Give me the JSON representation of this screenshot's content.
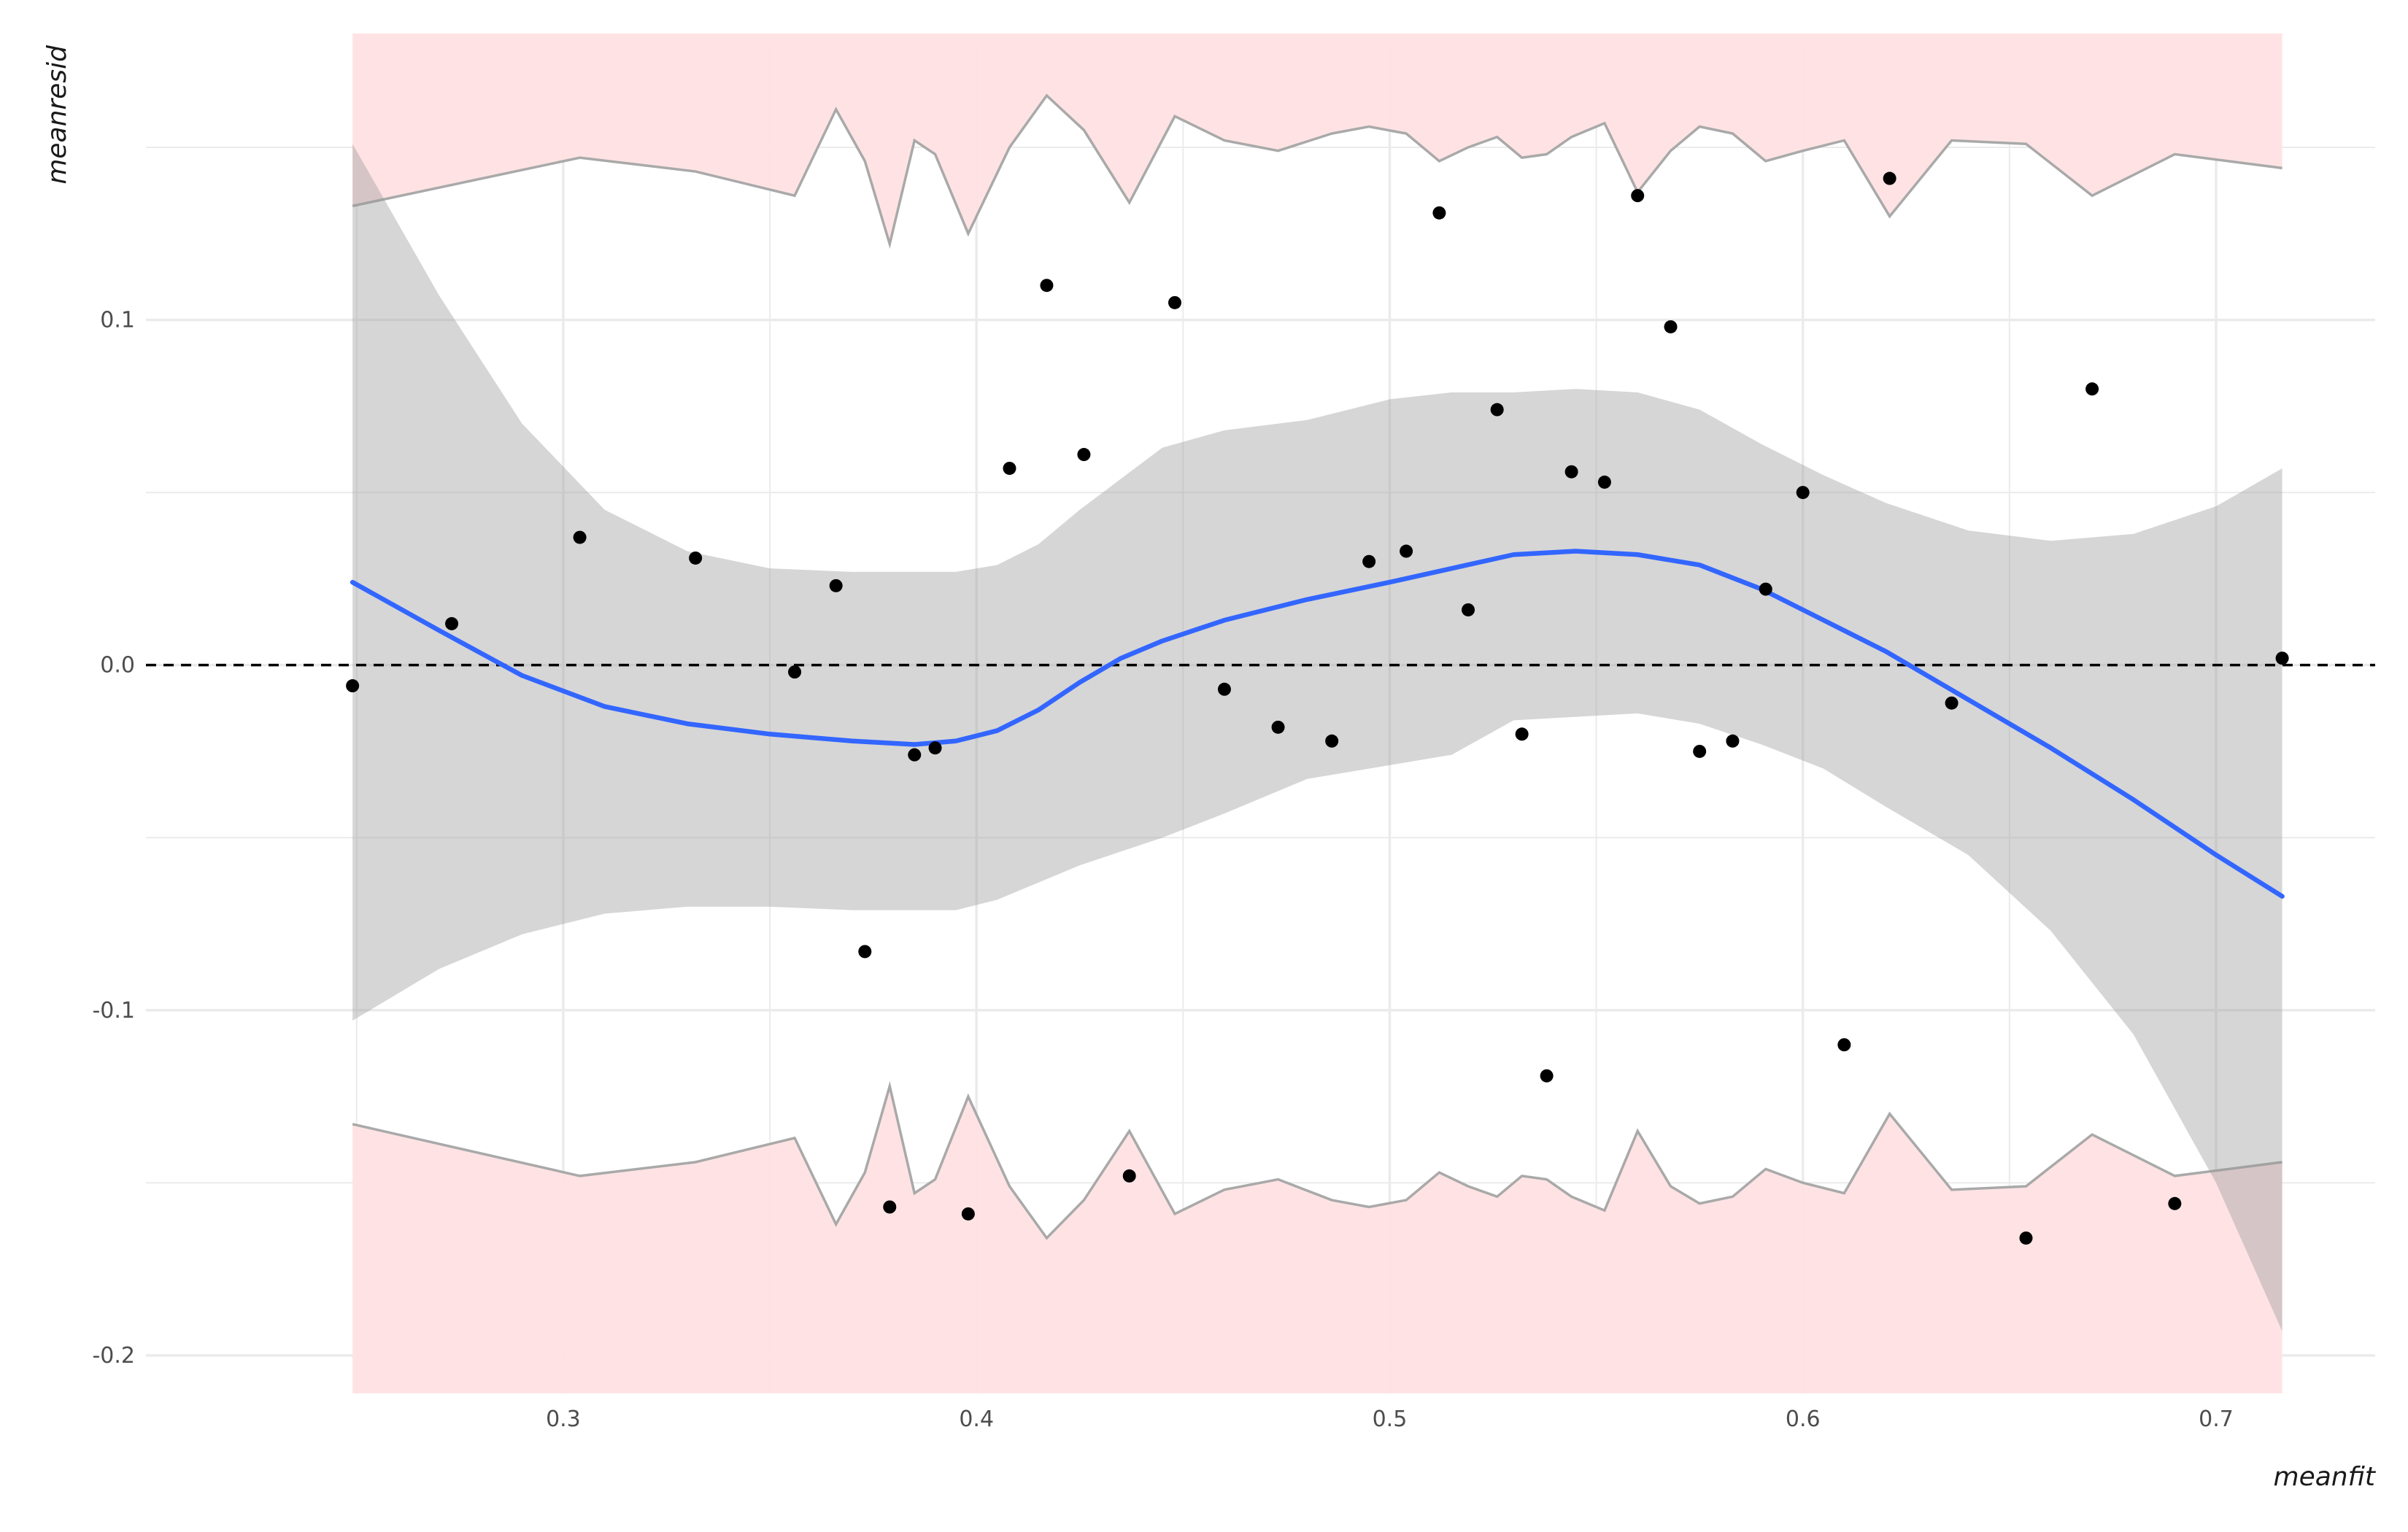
{
  "chart_data": {
    "type": "scatter",
    "title": "",
    "xlabel": "meanfit",
    "ylabel": "meanresid",
    "xlim": [
      0.199,
      0.7385
    ],
    "ylim": [
      -0.211,
      0.18
    ],
    "x_ticks": [
      {
        "value": 0.3,
        "label": "0.3"
      },
      {
        "value": 0.4,
        "label": "0.4"
      },
      {
        "value": 0.5,
        "label": "0.5"
      },
      {
        "value": 0.6,
        "label": "0.6"
      },
      {
        "value": 0.7,
        "label": "0.7"
      }
    ],
    "y_ticks": [
      {
        "value": -0.2,
        "label": "-0.2"
      },
      {
        "value": -0.1,
        "label": "-0.1"
      },
      {
        "value": 0.0,
        "label": "0.0"
      },
      {
        "value": 0.1,
        "label": "0.1"
      }
    ],
    "grid": true,
    "reference_line": {
      "y": 0.0,
      "style": "dashed"
    },
    "colors": {
      "points": "#000000",
      "smooth_line": "#3366ff",
      "confidence_band": "#999999",
      "envelope_fill": "#ffe1e3",
      "envelope_line": "#a9a9a9",
      "grid": "#ebebeb"
    },
    "points": [
      {
        "x": 0.249,
        "y": -0.006
      },
      {
        "x": 0.273,
        "y": 0.012
      },
      {
        "x": 0.304,
        "y": 0.037
      },
      {
        "x": 0.332,
        "y": 0.031
      },
      {
        "x": 0.356,
        "y": -0.002
      },
      {
        "x": 0.366,
        "y": 0.023
      },
      {
        "x": 0.373,
        "y": -0.083
      },
      {
        "x": 0.379,
        "y": -0.157
      },
      {
        "x": 0.385,
        "y": -0.026
      },
      {
        "x": 0.39,
        "y": -0.024
      },
      {
        "x": 0.398,
        "y": -0.159
      },
      {
        "x": 0.408,
        "y": 0.057
      },
      {
        "x": 0.417,
        "y": 0.11
      },
      {
        "x": 0.426,
        "y": 0.061
      },
      {
        "x": 0.437,
        "y": -0.148
      },
      {
        "x": 0.448,
        "y": 0.105
      },
      {
        "x": 0.46,
        "y": -0.007
      },
      {
        "x": 0.473,
        "y": -0.018
      },
      {
        "x": 0.486,
        "y": -0.022
      },
      {
        "x": 0.495,
        "y": 0.03
      },
      {
        "x": 0.504,
        "y": 0.033
      },
      {
        "x": 0.512,
        "y": 0.131
      },
      {
        "x": 0.519,
        "y": 0.016
      },
      {
        "x": 0.526,
        "y": 0.074
      },
      {
        "x": 0.532,
        "y": -0.02
      },
      {
        "x": 0.538,
        "y": -0.119
      },
      {
        "x": 0.544,
        "y": 0.056
      },
      {
        "x": 0.552,
        "y": 0.053
      },
      {
        "x": 0.56,
        "y": 0.136
      },
      {
        "x": 0.568,
        "y": 0.098
      },
      {
        "x": 0.575,
        "y": -0.025
      },
      {
        "x": 0.583,
        "y": -0.022
      },
      {
        "x": 0.591,
        "y": 0.022
      },
      {
        "x": 0.6,
        "y": 0.05
      },
      {
        "x": 0.61,
        "y": -0.11
      },
      {
        "x": 0.621,
        "y": 0.141
      },
      {
        "x": 0.636,
        "y": -0.011
      },
      {
        "x": 0.654,
        "y": -0.166
      },
      {
        "x": 0.67,
        "y": 0.08
      },
      {
        "x": 0.69,
        "y": -0.156
      },
      {
        "x": 0.716,
        "y": 0.002
      }
    ],
    "smooth": {
      "x": [
        0.249,
        0.27,
        0.29,
        0.31,
        0.33,
        0.35,
        0.37,
        0.385,
        0.395,
        0.405,
        0.415,
        0.425,
        0.435,
        0.445,
        0.46,
        0.48,
        0.5,
        0.515,
        0.53,
        0.545,
        0.56,
        0.575,
        0.59,
        0.605,
        0.62,
        0.64,
        0.66,
        0.68,
        0.7,
        0.716
      ],
      "y": [
        0.024,
        0.01,
        -0.003,
        -0.012,
        -0.017,
        -0.02,
        -0.022,
        -0.023,
        -0.022,
        -0.019,
        -0.013,
        -0.005,
        0.002,
        0.007,
        0.013,
        0.019,
        0.024,
        0.028,
        0.032,
        0.033,
        0.032,
        0.029,
        0.022,
        0.013,
        0.004,
        -0.01,
        -0.024,
        -0.039,
        -0.055,
        -0.067
      ],
      "lower": [
        -0.103,
        -0.088,
        -0.078,
        -0.072,
        -0.07,
        -0.07,
        -0.071,
        -0.071,
        -0.071,
        -0.068,
        -0.063,
        -0.058,
        -0.054,
        -0.05,
        -0.043,
        -0.033,
        -0.029,
        -0.026,
        -0.016,
        -0.015,
        -0.014,
        -0.017,
        -0.023,
        -0.03,
        -0.041,
        -0.055,
        -0.077,
        -0.107,
        -0.15,
        -0.193
      ],
      "upper": [
        0.151,
        0.107,
        0.07,
        0.045,
        0.033,
        0.028,
        0.027,
        0.027,
        0.027,
        0.029,
        0.035,
        0.045,
        0.054,
        0.063,
        0.068,
        0.071,
        0.077,
        0.079,
        0.079,
        0.08,
        0.079,
        0.074,
        0.064,
        0.055,
        0.047,
        0.039,
        0.036,
        0.038,
        0.046,
        0.057
      ]
    },
    "envelope": {
      "x": [
        0.249,
        0.304,
        0.332,
        0.356,
        0.366,
        0.373,
        0.379,
        0.385,
        0.39,
        0.398,
        0.408,
        0.417,
        0.426,
        0.437,
        0.448,
        0.46,
        0.473,
        0.486,
        0.495,
        0.504,
        0.512,
        0.519,
        0.526,
        0.532,
        0.538,
        0.544,
        0.552,
        0.56,
        0.568,
        0.575,
        0.583,
        0.591,
        0.6,
        0.61,
        0.621,
        0.636,
        0.654,
        0.67,
        0.69,
        0.716
      ],
      "upper": [
        0.133,
        0.147,
        0.143,
        0.136,
        0.161,
        0.146,
        0.122,
        0.152,
        0.148,
        0.125,
        0.15,
        0.165,
        0.155,
        0.134,
        0.159,
        0.152,
        0.149,
        0.154,
        0.156,
        0.154,
        0.146,
        0.15,
        0.153,
        0.147,
        0.148,
        0.153,
        0.157,
        0.137,
        0.149,
        0.156,
        0.154,
        0.146,
        0.149,
        0.152,
        0.13,
        0.152,
        0.151,
        0.136,
        0.148,
        0.144
      ],
      "lower": [
        -0.133,
        -0.148,
        -0.144,
        -0.137,
        -0.162,
        -0.147,
        -0.122,
        -0.153,
        -0.149,
        -0.125,
        -0.151,
        -0.166,
        -0.155,
        -0.135,
        -0.159,
        -0.152,
        -0.149,
        -0.155,
        -0.157,
        -0.155,
        -0.147,
        -0.151,
        -0.154,
        -0.148,
        -0.149,
        -0.154,
        -0.158,
        -0.135,
        -0.151,
        -0.156,
        -0.154,
        -0.146,
        -0.15,
        -0.153,
        -0.13,
        -0.152,
        -0.151,
        -0.136,
        -0.148,
        -0.144
      ],
      "fill_top": 0.183,
      "fill_bottom": -0.211
    }
  }
}
